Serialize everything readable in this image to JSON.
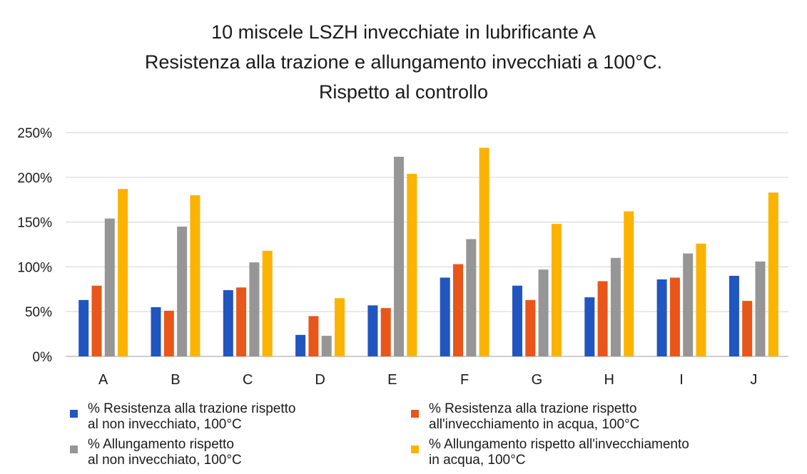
{
  "chart_data": {
    "type": "bar",
    "title_lines": [
      "10 miscele LSZH invecchiate in lubrificante A",
      "Resistenza alla trazione e allungamento invecchiati a 100°C.",
      "Rispetto al controllo"
    ],
    "categories": [
      "A",
      "B",
      "C",
      "D",
      "E",
      "F",
      "G",
      "H",
      "I",
      "J"
    ],
    "y_ticks": [
      "0%",
      "50%",
      "100%",
      "150%",
      "200%",
      "250%"
    ],
    "ylim": [
      0,
      250
    ],
    "y_unit": "%",
    "grid": true,
    "legend_position": "bottom",
    "series": [
      {
        "name": "% Resistenza alla trazione rispetto\nal non invecchiato, 100°C",
        "color": "#2155c0",
        "values": [
          63,
          55,
          74,
          24,
          57,
          88,
          79,
          66,
          86,
          90
        ]
      },
      {
        "name": "% Resistenza alla trazione rispetto\nall'invecchiamento in acqua, 100°C",
        "color": "#e8561a",
        "values": [
          79,
          51,
          77,
          45,
          54,
          103,
          63,
          84,
          88,
          62
        ]
      },
      {
        "name": "% Allungamento rispetto\nal non invecchiato, 100°C",
        "color": "#969696",
        "values": [
          154,
          145,
          105,
          23,
          223,
          131,
          97,
          110,
          115,
          106
        ]
      },
      {
        "name": "% Allungamento rispetto all'invecchiamento\nin acqua, 100°C",
        "color": "#fbb300",
        "values": [
          187,
          180,
          118,
          65,
          204,
          233,
          148,
          162,
          126,
          183
        ]
      }
    ]
  }
}
